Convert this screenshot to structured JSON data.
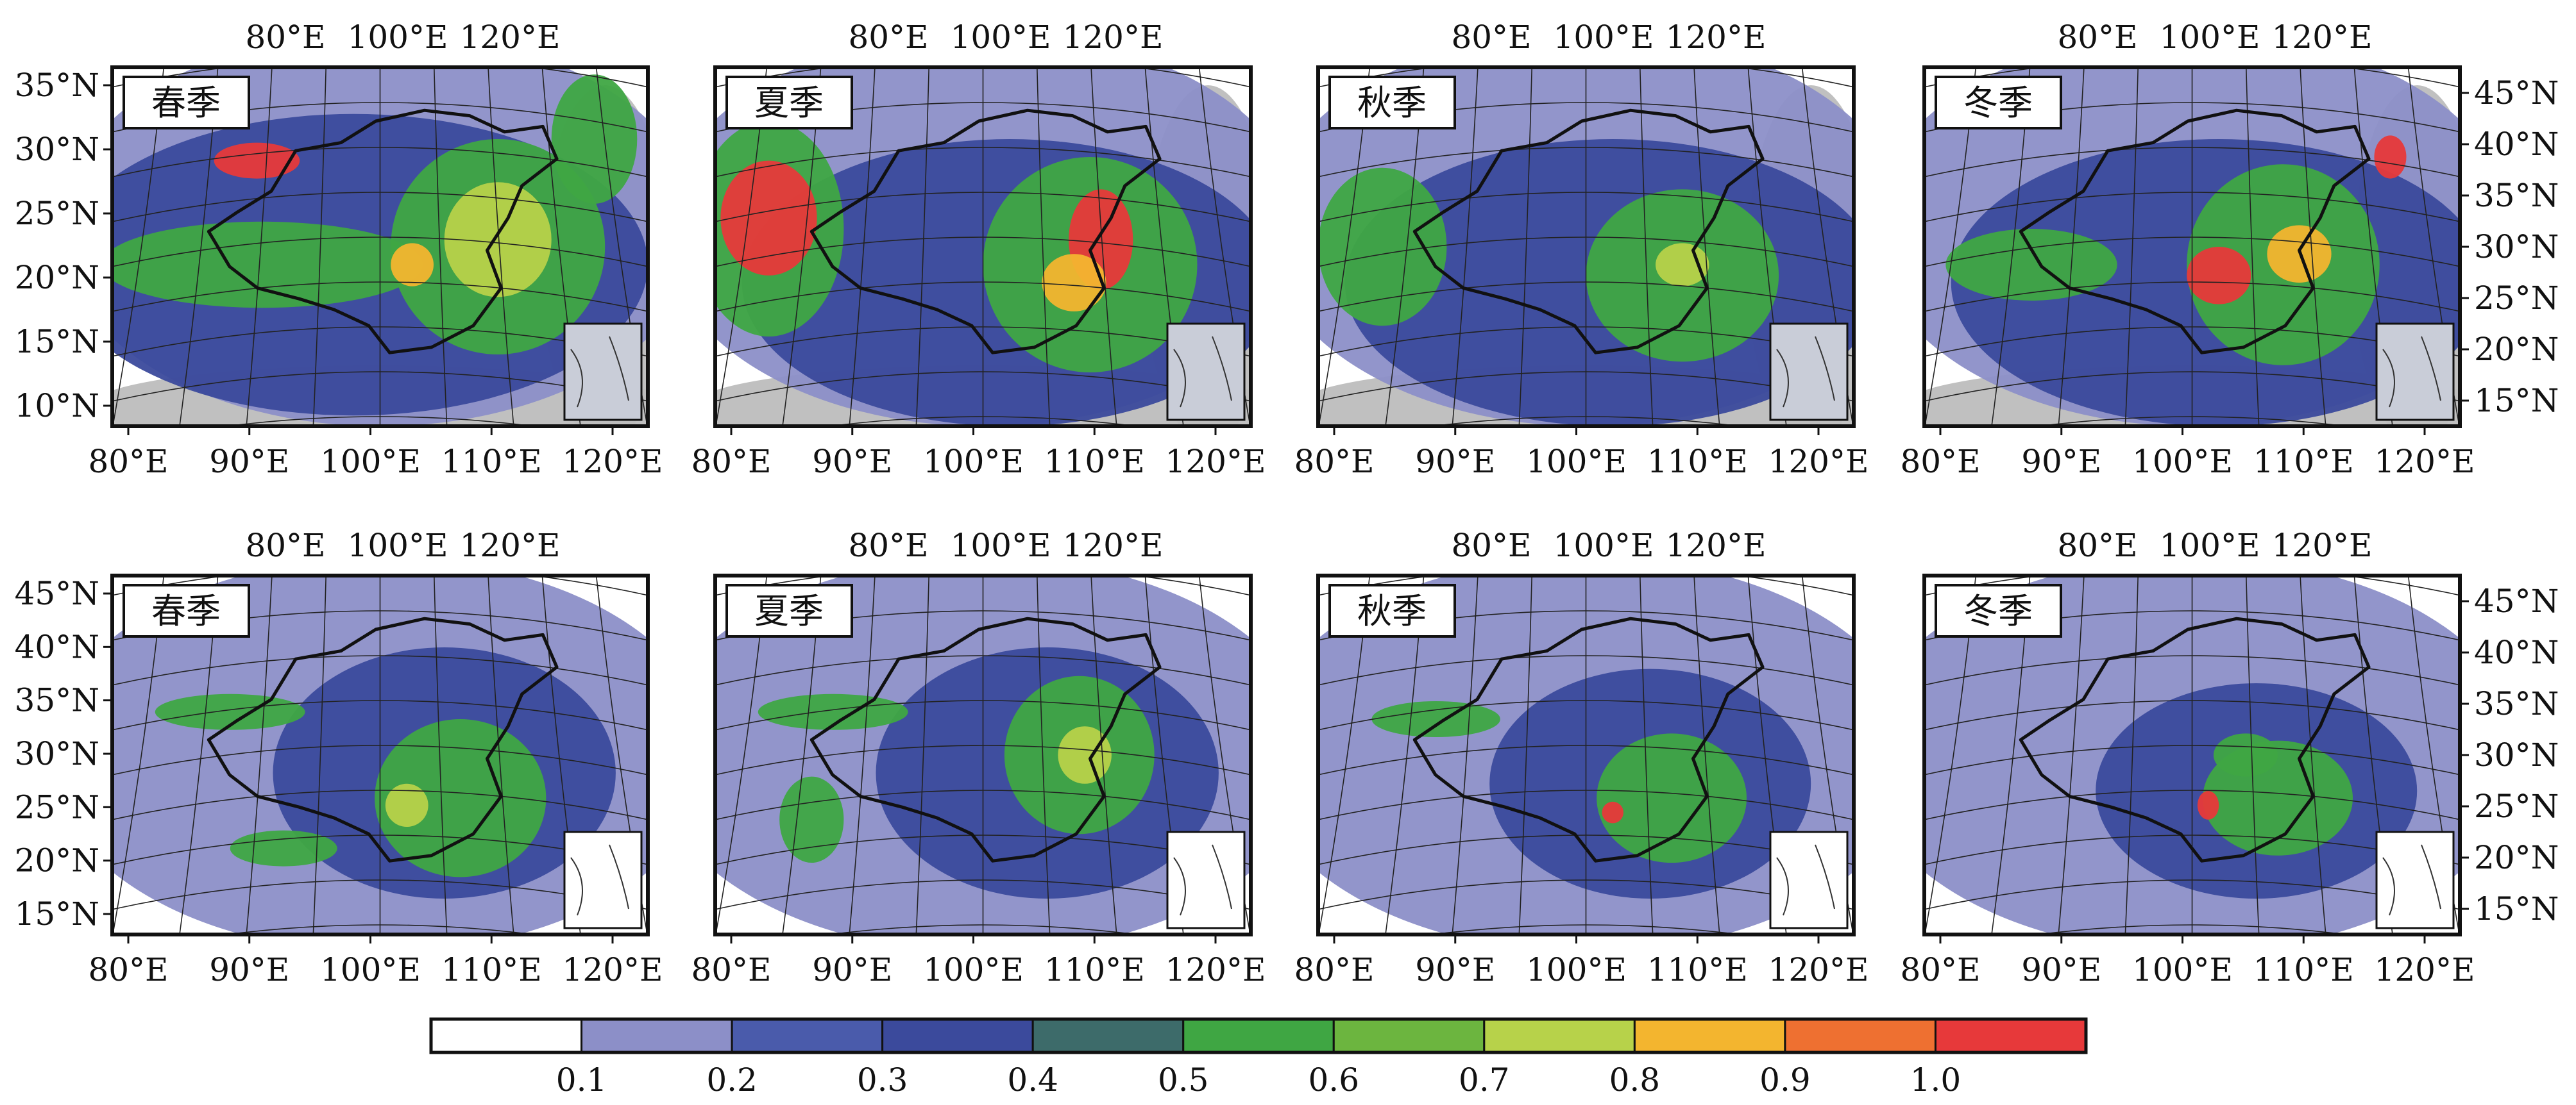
{
  "figure": {
    "rows": [
      {
        "row": "top",
        "panels": [
          {
            "season": "春季",
            "bottom_ticks": [
              "80°E",
              "90°E",
              "100°E",
              "110°E",
              "120°E"
            ],
            "top_ticks": [
              "80°E",
              "100°E",
              "120°E"
            ],
            "left_ticks": [
              "35°N",
              "30°N",
              "25°N",
              "20°N",
              "15°N",
              "10°N"
            ],
            "right_ticks": []
          },
          {
            "season": "夏季",
            "bottom_ticks": [
              "80°E",
              "90°E",
              "100°E",
              "110°E",
              "120°E"
            ],
            "top_ticks": [
              "80°E",
              "100°E",
              "120°E"
            ],
            "left_ticks": [],
            "right_ticks": []
          },
          {
            "season": "秋季",
            "bottom_ticks": [
              "80°E",
              "90°E",
              "100°E",
              "110°E",
              "120°E"
            ],
            "top_ticks": [
              "80°E",
              "100°E",
              "120°E"
            ],
            "left_ticks": [],
            "right_ticks": []
          },
          {
            "season": "冬季",
            "bottom_ticks": [
              "80°E",
              "90°E",
              "100°E",
              "110°E",
              "120°E"
            ],
            "top_ticks": [
              "80°E",
              "100°E",
              "120°E"
            ],
            "left_ticks": [],
            "right_ticks": [
              "45°N",
              "40°N",
              "35°N",
              "30°N",
              "25°N",
              "20°N",
              "15°N"
            ]
          }
        ]
      },
      {
        "row": "bottom",
        "panels": [
          {
            "season": "春季",
            "bottom_ticks": [
              "80°E",
              "90°E",
              "100°E",
              "110°E",
              "120°E"
            ],
            "top_ticks": [
              "80°E",
              "100°E",
              "120°E"
            ],
            "left_ticks": [
              "45°N",
              "40°N",
              "35°N",
              "30°N",
              "25°N",
              "20°N",
              "15°N"
            ],
            "right_ticks": []
          },
          {
            "season": "夏季",
            "bottom_ticks": [
              "80°E",
              "90°E",
              "100°E",
              "110°E",
              "120°E"
            ],
            "top_ticks": [
              "80°E",
              "100°E",
              "120°E"
            ],
            "left_ticks": [],
            "right_ticks": []
          },
          {
            "season": "秋季",
            "bottom_ticks": [
              "80°E",
              "90°E",
              "100°E",
              "110°E",
              "120°E"
            ],
            "top_ticks": [
              "80°E",
              "100°E",
              "120°E"
            ],
            "left_ticks": [],
            "right_ticks": []
          },
          {
            "season": "冬季",
            "bottom_ticks": [
              "80°E",
              "90°E",
              "100°E",
              "110°E",
              "120°E"
            ],
            "top_ticks": [
              "80°E",
              "100°E",
              "120°E"
            ],
            "left_ticks": [],
            "right_ticks": [
              "45°N",
              "40°N",
              "35°N",
              "30°N",
              "25°N",
              "20°N",
              "15°N"
            ]
          }
        ]
      }
    ],
    "colorbar": {
      "colors": [
        "#ffffff",
        "#8c8fc8",
        "#4a5bab",
        "#3b4a9c",
        "#3d6b6a",
        "#3fa643",
        "#6cb53f",
        "#b7d24a",
        "#f3b52f",
        "#ee7031",
        "#e7393a"
      ],
      "labels": [
        "0.1",
        "0.2",
        "0.3",
        "0.4",
        "0.5",
        "0.6",
        "0.7",
        "0.8",
        "0.9",
        "1.0"
      ]
    },
    "map_colors": {
      "background": "#ffffff",
      "land_nodata": "#bdbdbd",
      "very_low": "#8c8fc8",
      "low": "#3b4a9c",
      "mid": "#3fa643",
      "midhigh": "#b7d24a",
      "high": "#f3b52f",
      "veryhigh": "#e7393a",
      "border": "#111111"
    }
  }
}
